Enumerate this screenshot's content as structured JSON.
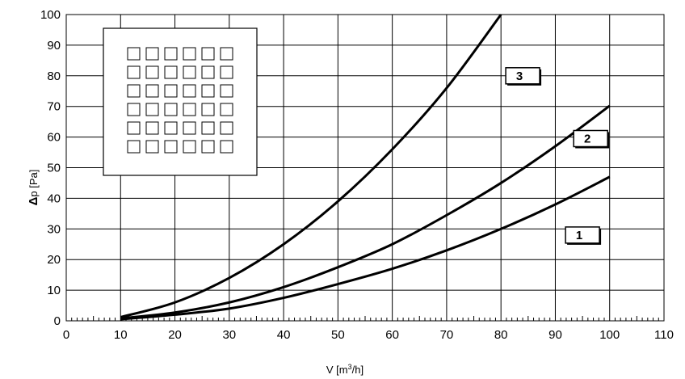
{
  "chart_data": {
    "type": "line",
    "xlabel_parts": {
      "main": "V  [m",
      "sup": "3",
      "tail": "/h]"
    },
    "ylabel_parts": {
      "delta": "Δ",
      "main": "p [Pa]"
    },
    "xlim": [
      0,
      110
    ],
    "ylim": [
      0,
      100
    ],
    "x_ticks": [
      0,
      10,
      20,
      30,
      40,
      50,
      60,
      70,
      80,
      90,
      100,
      110
    ],
    "y_ticks": [
      0,
      10,
      20,
      30,
      40,
      50,
      60,
      70,
      80,
      90,
      100
    ],
    "grid": true,
    "series": [
      {
        "name": "1",
        "x": [
          10,
          20,
          30,
          40,
          50,
          60,
          70,
          80,
          90,
          100
        ],
        "values": [
          0.5,
          2,
          4,
          7.5,
          12,
          17,
          23,
          30,
          38,
          47
        ],
        "label_at": [
          95,
          28
        ]
      },
      {
        "name": "2",
        "x": [
          10,
          20,
          30,
          40,
          50,
          60,
          70,
          80,
          90,
          100
        ],
        "values": [
          0.8,
          2.7,
          6,
          11,
          17.5,
          25,
          34.5,
          45,
          57,
          70.2
        ],
        "label_at": [
          96.5,
          59.5
        ]
      },
      {
        "name": "3",
        "x": [
          10,
          20,
          30,
          40,
          50,
          60,
          70,
          80
        ],
        "values": [
          1.2,
          6,
          14,
          25,
          39,
          56,
          76,
          100
        ],
        "label_at": [
          84,
          80
        ]
      }
    ],
    "inset": {
      "type": "square-grid-icon",
      "rows": 6,
      "cols": 6
    },
    "line_color": "#000000",
    "grid_color": "#000000"
  }
}
